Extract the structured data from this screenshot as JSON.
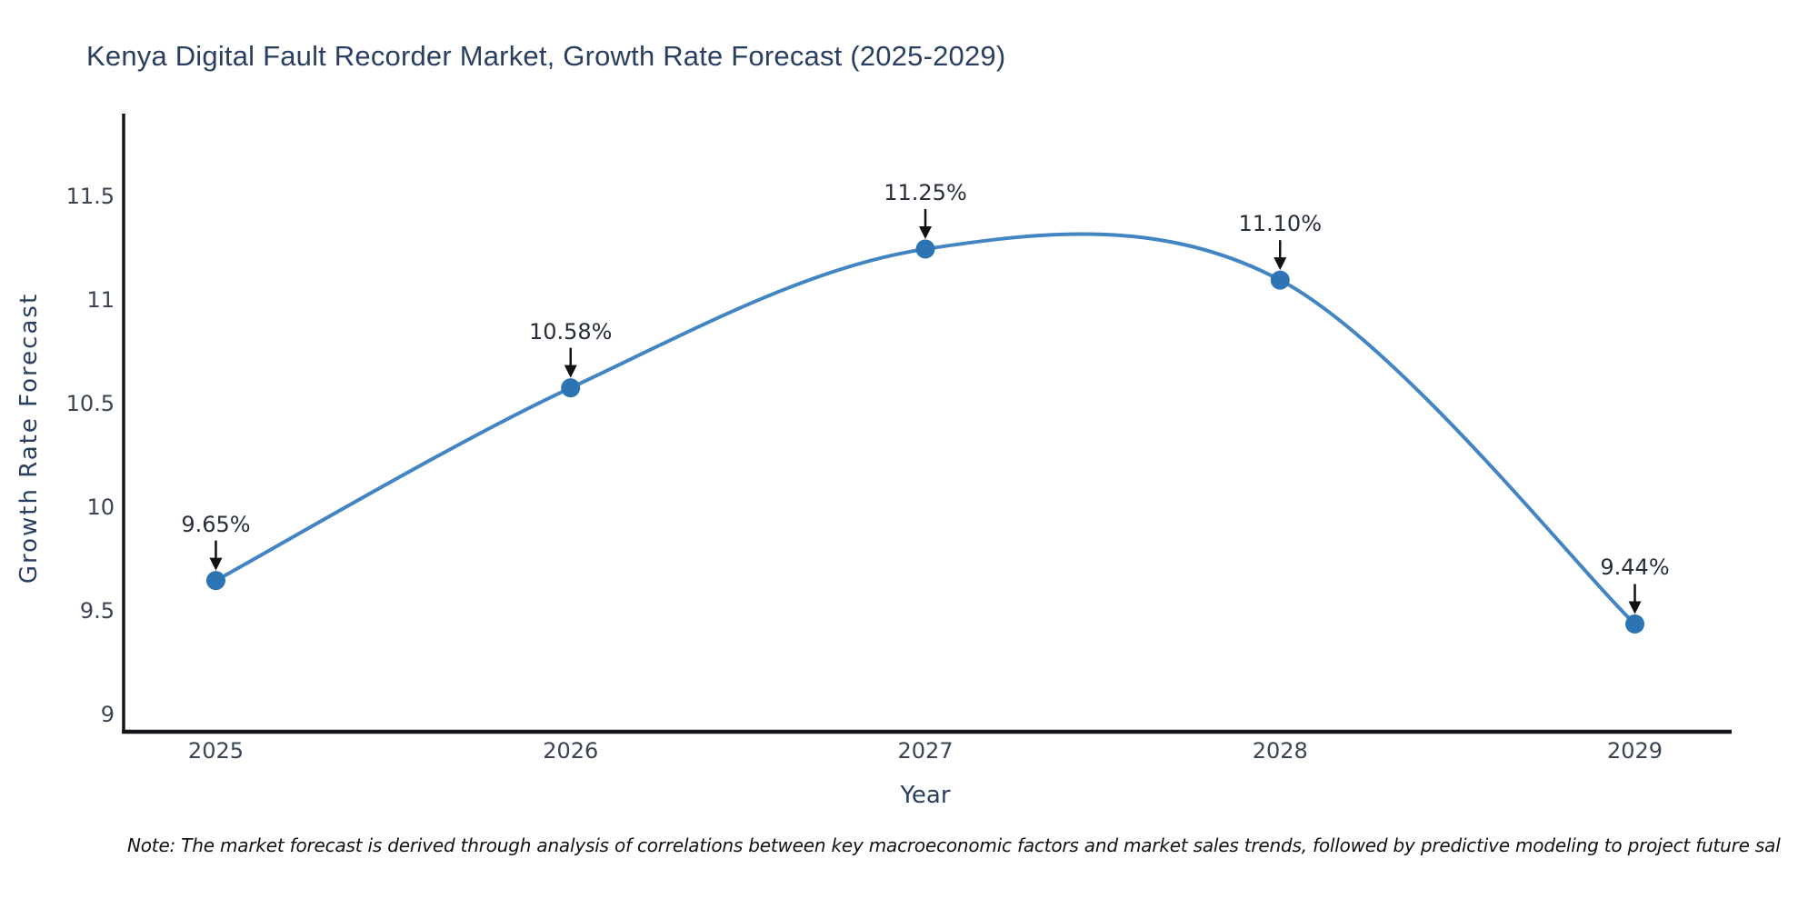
{
  "note": "Note: The market forecast is derived through analysis of correlations between key macroeconomic factors and market sales trends, followed by predictive modeling to project future sal",
  "chart_data": {
    "type": "line",
    "title": "Kenya Digital Fault Recorder Market, Growth Rate Forecast (2025-2029)",
    "xlabel": "Year",
    "ylabel": "Growth Rate Forecast",
    "x": [
      2025,
      2026,
      2027,
      2028,
      2029
    ],
    "values": [
      9.65,
      10.58,
      11.25,
      11.1,
      9.44
    ],
    "point_labels": [
      "9.65%",
      "10.58%",
      "11.25%",
      "11.10%",
      "9.44%"
    ],
    "xtick_labels": [
      "2025",
      "2026",
      "2027",
      "2028",
      "2029"
    ],
    "yticks": [
      9,
      9.5,
      10,
      10.5,
      11,
      11.5
    ],
    "ytick_labels": [
      "9",
      "9.5",
      "10",
      "10.5",
      "11",
      "11.5"
    ],
    "xlim": [
      2024.74,
      2029.26
    ],
    "ylim": [
      8.92,
      11.75
    ],
    "grid": false,
    "legend": "none",
    "line_color": "#4285c2",
    "marker_color": "#2d74b5",
    "arrow_color": "#111111",
    "spine_color": "#14161a"
  }
}
